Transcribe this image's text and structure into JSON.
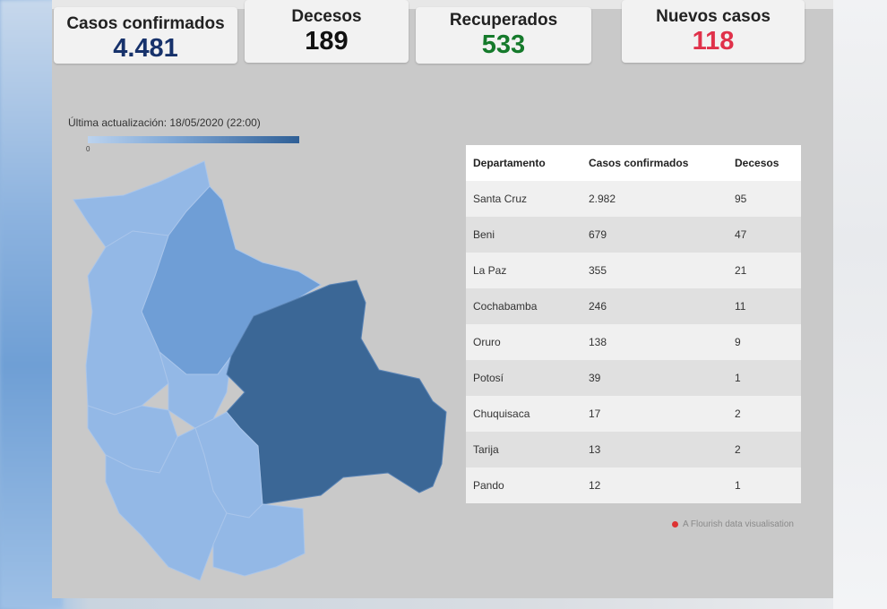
{
  "stats": {
    "confirmed": {
      "label": "Casos confirmados",
      "value": "4.481",
      "color": "#17326b"
    },
    "deaths": {
      "label": "Decesos",
      "value": "189",
      "color": "#111111"
    },
    "recovered": {
      "label": "Recuperados",
      "value": "533",
      "color": "#157a2b"
    },
    "new_cases": {
      "label": "Nuevos casos",
      "value": "118",
      "color": "#e0314a"
    }
  },
  "map": {
    "last_update": "Última actualización: 18/05/2020 (22:00)",
    "legend_min": "0",
    "colors": {
      "light": "#93b8e6",
      "mid": "#6f9ed6",
      "dark": "#3b6796"
    }
  },
  "table": {
    "headers": [
      "Departamento",
      "Casos confirmados",
      "Decesos"
    ],
    "rows": [
      [
        "Santa Cruz",
        "2.982",
        "95"
      ],
      [
        "Beni",
        "679",
        "47"
      ],
      [
        "La Paz",
        "355",
        "21"
      ],
      [
        "Cochabamba",
        "246",
        "11"
      ],
      [
        "Oruro",
        "138",
        "9"
      ],
      [
        "Potosí",
        "39",
        "1"
      ],
      [
        "Chuquisaca",
        "17",
        "2"
      ],
      [
        "Tarija",
        "13",
        "2"
      ],
      [
        "Pando",
        "12",
        "1"
      ]
    ]
  },
  "footer": {
    "credit": "A Flourish data visualisation"
  }
}
